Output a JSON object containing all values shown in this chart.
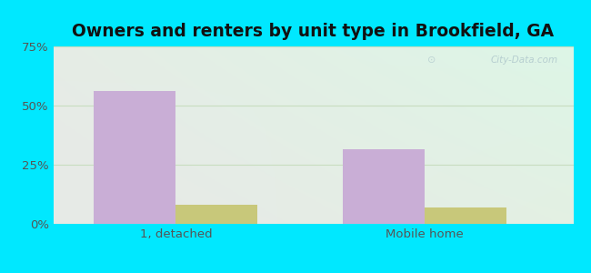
{
  "title": "Owners and renters by unit type in Brookfield, GA",
  "categories": [
    "1, detached",
    "Mobile home"
  ],
  "owner_values": [
    56.3,
    31.6
  ],
  "renter_values": [
    7.9,
    6.8
  ],
  "owner_color": "#c9aed6",
  "renter_color": "#c8c87a",
  "bar_width": 0.22,
  "ylim": [
    0,
    75
  ],
  "yticks": [
    0,
    25,
    50,
    75
  ],
  "ytick_labels": [
    "0%",
    "25%",
    "50%",
    "75%"
  ],
  "background_outer": "#00e8ff",
  "grid_color": "#c8ddc0",
  "title_fontsize": 13.5,
  "tick_fontsize": 9.5,
  "legend_fontsize": 9.5,
  "watermark": "City-Data.com"
}
